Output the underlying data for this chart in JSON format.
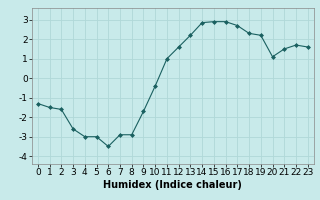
{
  "x": [
    0,
    1,
    2,
    3,
    4,
    5,
    6,
    7,
    8,
    9,
    10,
    11,
    12,
    13,
    14,
    15,
    16,
    17,
    18,
    19,
    20,
    21,
    22,
    23
  ],
  "y": [
    -1.3,
    -1.5,
    -1.6,
    -2.6,
    -3.0,
    -3.0,
    -3.5,
    -2.9,
    -2.9,
    -1.7,
    -0.4,
    1.0,
    1.6,
    2.2,
    2.85,
    2.9,
    2.9,
    2.7,
    2.3,
    2.2,
    1.1,
    1.5,
    1.7,
    1.6
  ],
  "line_color": "#1a6060",
  "marker": "D",
  "marker_size": 2.0,
  "bg_color": "#c8eaea",
  "grid_color": "#b0d8d8",
  "xlabel": "Humidex (Indice chaleur)",
  "xlim": [
    -0.5,
    23.5
  ],
  "ylim": [
    -4.4,
    3.6
  ],
  "xticks": [
    0,
    1,
    2,
    3,
    4,
    5,
    6,
    7,
    8,
    9,
    10,
    11,
    12,
    13,
    14,
    15,
    16,
    17,
    18,
    19,
    20,
    21,
    22,
    23
  ],
  "yticks": [
    -4,
    -3,
    -2,
    -1,
    0,
    1,
    2,
    3
  ],
  "xlabel_fontsize": 7,
  "tick_fontsize": 6.5
}
